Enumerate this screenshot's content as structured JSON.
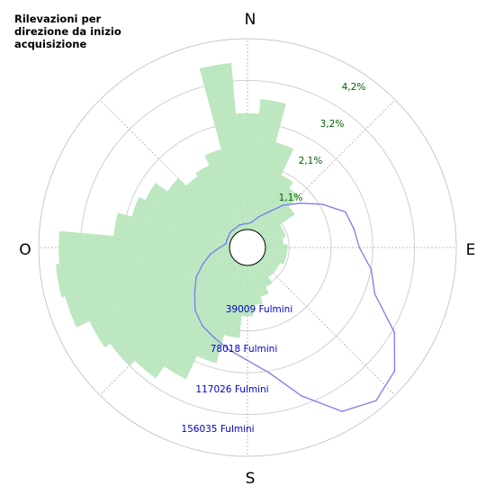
{
  "title": "Rilevazioni per direzione da inizio acquisizione",
  "chart_data": {
    "type": "polar",
    "title": "Rilevazioni per direzione da inizio acquisizione",
    "directions": {
      "north": "N",
      "east": "E",
      "south": "S",
      "west": "O"
    },
    "percent_axis": {
      "labels": [
        "1,1%",
        "2,1%",
        "3,2%",
        "4,2%"
      ],
      "values": [
        1.05,
        2.1,
        3.15,
        4.2
      ],
      "max": 5.25
    },
    "count_axis": {
      "labels": [
        "39009 Fulmini",
        "78018 Fulmini",
        "117026 Fulmini",
        "156035 Fulmini"
      ],
      "values": [
        39009,
        78018,
        117026,
        156035
      ],
      "max": 195044
    },
    "series": [
      {
        "kind": "bars",
        "unit": "percent",
        "color": "#b8e6bd",
        "bearings_deg": [
          0,
          10,
          20,
          30,
          40,
          50,
          60,
          70,
          80,
          90,
          100,
          110,
          120,
          130,
          140,
          150,
          160,
          170,
          180,
          190,
          200,
          210,
          220,
          230,
          240,
          250,
          260,
          270,
          280,
          290,
          300,
          310,
          320,
          330,
          340,
          350
        ],
        "values": [
          3.2,
          3.6,
          2.5,
          1.7,
          1.5,
          1.1,
          0.6,
          0.6,
          0.5,
          0.6,
          0.6,
          0.6,
          0.5,
          0.5,
          0.5,
          0.7,
          0.9,
          1.1,
          1.4,
          2.0,
          2.8,
          3.5,
          3.9,
          4.1,
          4.3,
          4.7,
          4.8,
          4.7,
          3.2,
          2.8,
          2.6,
          2.2,
          1.9,
          2.0,
          2.3,
          4.6
        ]
      },
      {
        "kind": "line",
        "unit": "count",
        "color": "#7a7af0",
        "bearings_deg": [
          0,
          10,
          20,
          30,
          40,
          50,
          60,
          70,
          80,
          90,
          100,
          110,
          120,
          130,
          140,
          150,
          160,
          170,
          180,
          190,
          200,
          210,
          220,
          230,
          240,
          250,
          260,
          270,
          280,
          290,
          300,
          310,
          320,
          330,
          340,
          350
        ],
        "values": [
          6000,
          8000,
          15000,
          23000,
          38000,
          52000,
          70000,
          88000,
          92000,
          96000,
          110000,
          120000,
          155000,
          178000,
          186000,
          175000,
          143000,
          112000,
          97000,
          88000,
          80000,
          74000,
          65000,
          52000,
          42000,
          30000,
          20000,
          10000,
          4000,
          4000,
          4000,
          5000,
          5000,
          5000,
          6000,
          6000
        ]
      }
    ],
    "grid": true
  }
}
